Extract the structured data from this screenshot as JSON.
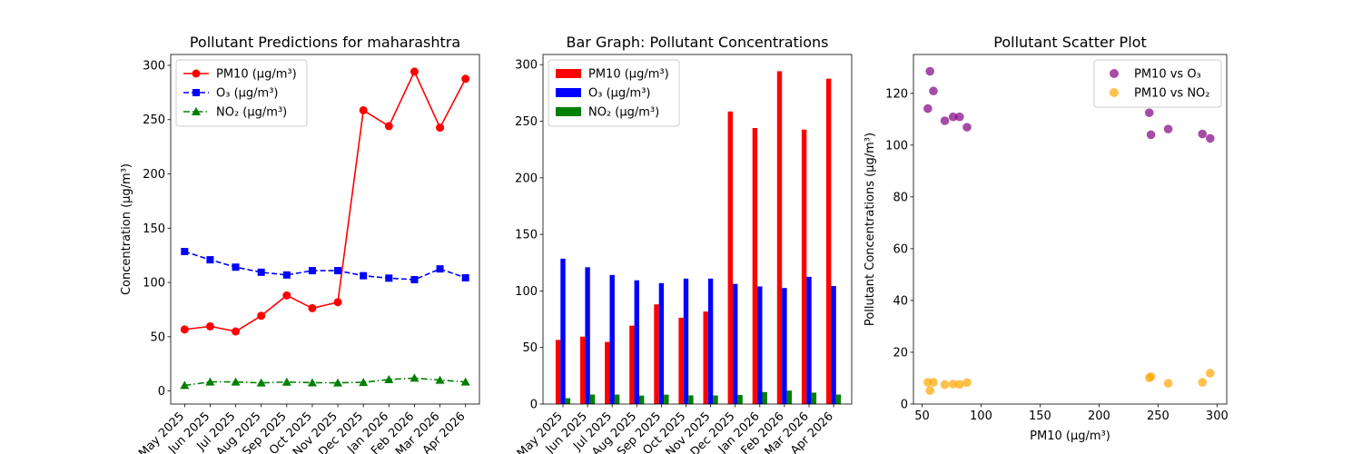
{
  "chart_data": [
    {
      "type": "line",
      "title": "Pollutant Predictions for maharashtra",
      "xlabel": "",
      "ylabel": "Concentration (µg/m³)",
      "categories": [
        "May 2025",
        "Jun 2025",
        "Jul 2025",
        "Aug 2025",
        "Sep 2025",
        "Oct 2025",
        "Nov 2025",
        "Dec 2025",
        "Jan 2026",
        "Feb 2026",
        "Mar 2026",
        "Apr 2026"
      ],
      "ylim": [
        -12,
        310
      ],
      "yticks": [
        0,
        50,
        100,
        150,
        200,
        250,
        300
      ],
      "legend": "top-left",
      "grid": false,
      "series": [
        {
          "name": "PM10 (µg/m³)",
          "color": "#ff0000",
          "marker": "circle",
          "linestyle": "solid",
          "values": [
            56.7,
            59.6,
            54.9,
            69.3,
            88.1,
            76.3,
            81.8,
            258.6,
            244.0,
            294.2,
            242.6,
            287.6
          ]
        },
        {
          "name": "O₃ (µg/m³)",
          "color": "#0000ff",
          "marker": "square",
          "linestyle": "dashed",
          "values": [
            128.5,
            120.9,
            114.1,
            109.4,
            106.9,
            110.9,
            110.9,
            106.2,
            104.0,
            102.6,
            112.5,
            104.3
          ]
        },
        {
          "name": "NO₂ (µg/m³)",
          "color": "#008000",
          "marker": "triangle",
          "linestyle": "dashdot",
          "values": [
            5.2,
            8.4,
            8.4,
            7.5,
            8.3,
            7.7,
            7.6,
            8.0,
            10.6,
            11.9,
            10.1,
            8.4
          ]
        }
      ]
    },
    {
      "type": "bar",
      "title": "Bar Graph: Pollutant Concentrations",
      "xlabel": "",
      "ylabel": "",
      "categories": [
        "May 2025",
        "Jun 2025",
        "Jul 2025",
        "Aug 2025",
        "Sep 2025",
        "Oct 2025",
        "Nov 2025",
        "Dec 2025",
        "Jan 2026",
        "Feb 2026",
        "Mar 2026",
        "Apr 2026"
      ],
      "ylim": [
        0,
        309
      ],
      "yticks": [
        0,
        50,
        100,
        150,
        200,
        250,
        300
      ],
      "legend": "top-left",
      "grid": false,
      "series": [
        {
          "name": "PM10 (µg/m³)",
          "color": "#ff0000",
          "values": [
            56.7,
            59.6,
            54.9,
            69.3,
            88.1,
            76.3,
            81.8,
            258.6,
            244.0,
            294.2,
            242.6,
            287.6
          ]
        },
        {
          "name": "O₃ (µg/m³)",
          "color": "#0000ff",
          "values": [
            128.5,
            120.9,
            114.1,
            109.4,
            106.9,
            110.9,
            110.9,
            106.2,
            104.0,
            102.6,
            112.5,
            104.3
          ]
        },
        {
          "name": "NO₂ (µg/m³)",
          "color": "#008000",
          "values": [
            5.2,
            8.4,
            8.4,
            7.5,
            8.3,
            7.7,
            7.6,
            8.0,
            10.6,
            11.9,
            10.1,
            8.4
          ]
        }
      ]
    },
    {
      "type": "scatter",
      "title": "Pollutant Scatter Plot",
      "xlabel": "PM10 (µg/m³)",
      "ylabel": "Pollutant Concentrations (µg/m³)",
      "xlim": [
        42.7,
        308.2
      ],
      "ylim": [
        0,
        135
      ],
      "xticks": [
        50,
        100,
        150,
        200,
        250,
        300
      ],
      "yticks": [
        0,
        20,
        40,
        60,
        80,
        100,
        120
      ],
      "legend": "top-right",
      "grid": false,
      "series": [
        {
          "name": "PM10 vs O₃",
          "color": "#800080",
          "opacity": 0.7,
          "x": [
            56.7,
            59.6,
            54.9,
            69.3,
            88.1,
            76.3,
            81.8,
            258.6,
            244.0,
            294.2,
            242.6,
            287.6
          ],
          "y": [
            128.5,
            120.9,
            114.1,
            109.4,
            106.9,
            110.9,
            110.9,
            106.2,
            104.0,
            102.6,
            112.5,
            104.3
          ]
        },
        {
          "name": "PM10 vs NO₂",
          "color": "#ffa500",
          "opacity": 0.7,
          "x": [
            56.7,
            59.6,
            54.9,
            69.3,
            88.1,
            76.3,
            81.8,
            258.6,
            244.0,
            294.2,
            242.6,
            287.6
          ],
          "y": [
            5.2,
            8.4,
            8.4,
            7.5,
            8.3,
            7.7,
            7.6,
            8.0,
            10.6,
            11.9,
            10.1,
            8.4
          ]
        }
      ]
    }
  ]
}
